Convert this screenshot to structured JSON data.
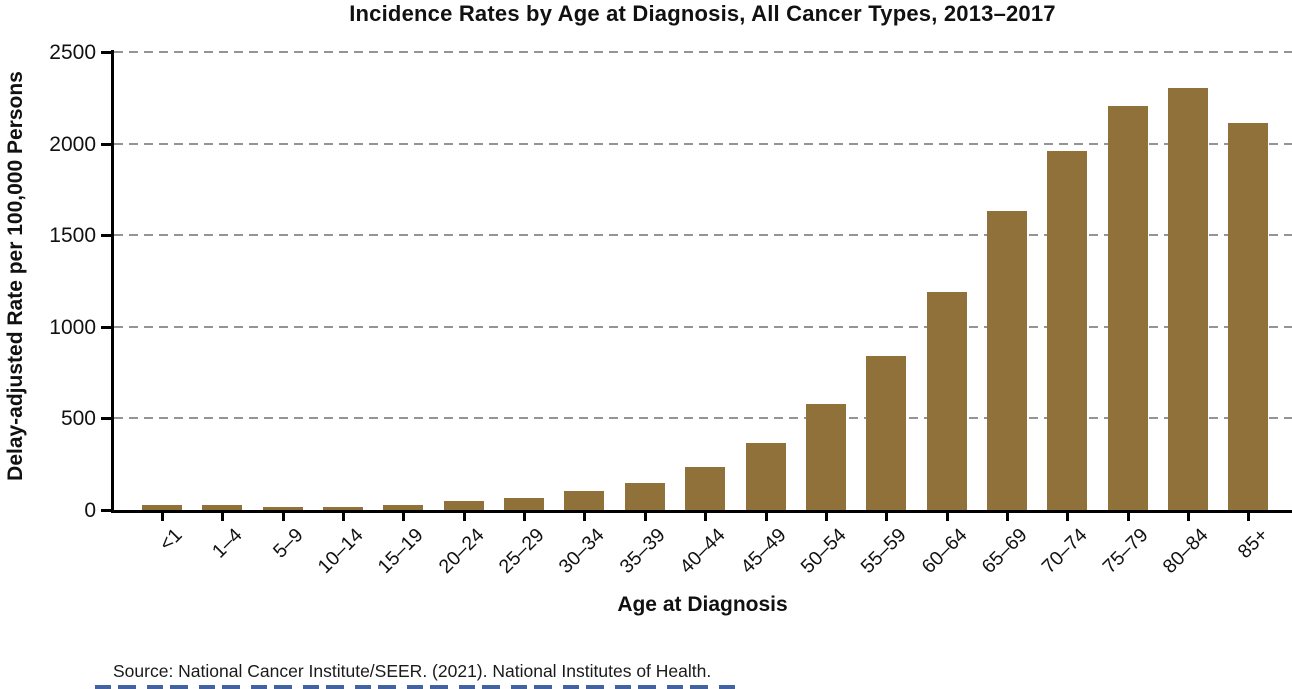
{
  "title": "Incidence Rates by Age at Diagnosis, All Cancer Types, 2013–2017",
  "source": "Source: National Cancer Institute/SEER. (2021). National Institutes of Health.",
  "colors": {
    "bar": "#90713A",
    "gridline": "#949494",
    "axis": "#000000",
    "text": "#111111",
    "clipped_bottom_element": "#2D5296"
  },
  "chart_data": {
    "type": "bar",
    "title": "Incidence Rates by Age at Diagnosis, All Cancer Types, 2013–2017",
    "xlabel": "Age at Diagnosis",
    "ylabel": "Delay-adjusted Rate per 100,000 Persons",
    "categories": [
      "<1",
      "1–4",
      "5–9",
      "10–14",
      "15–19",
      "20–24",
      "25–29",
      "30–34",
      "35–39",
      "40–44",
      "45–49",
      "50–54",
      "55–59",
      "60–64",
      "65–69",
      "70–74",
      "75–79",
      "80–84",
      "85+"
    ],
    "values": [
      30,
      28,
      16,
      17,
      27,
      47,
      68,
      102,
      148,
      235,
      365,
      580,
      840,
      1190,
      1630,
      1960,
      2205,
      2305,
      2110
    ],
    "ylim": [
      0,
      2500
    ],
    "yticks": [
      0,
      500,
      1000,
      1500,
      2000,
      2500
    ],
    "grid": "horizontal dashed gridlines at y ticks",
    "legend": "none",
    "bar_color": "#90713A"
  }
}
